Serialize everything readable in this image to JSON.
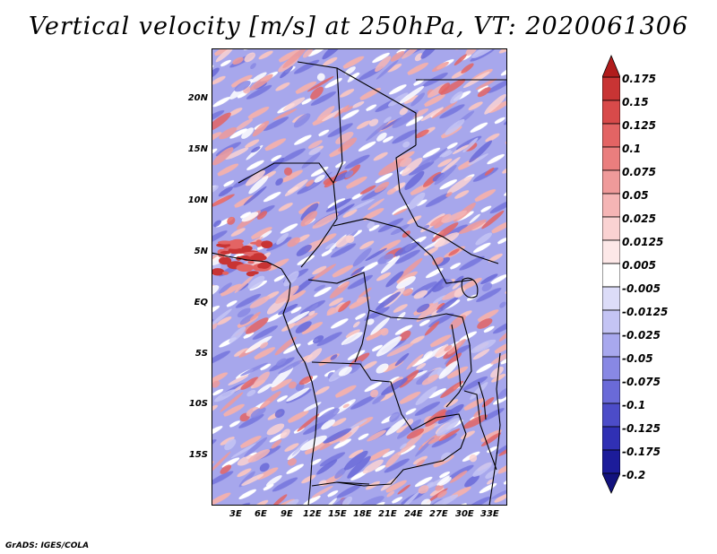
{
  "title": "Vertical velocity [m/s] at 250hPa, VT: 2020061306",
  "credit": "GrADS: IGES/COLA",
  "map": {
    "lat_labels": [
      "20N",
      "15N",
      "10N",
      "5N",
      "EQ",
      "5S",
      "10S",
      "15S"
    ],
    "lon_labels": [
      "3E",
      "6E",
      "9E",
      "12E",
      "15E",
      "18E",
      "21E",
      "24E",
      "27E",
      "30E",
      "33E"
    ]
  },
  "colorbar": {
    "labels": [
      "0.175",
      "0.15",
      "0.125",
      "0.1",
      "0.075",
      "0.05",
      "0.025",
      "0.0125",
      "0.005",
      "-0.005",
      "-0.0125",
      "-0.025",
      "-0.05",
      "-0.075",
      "-0.1",
      "-0.125",
      "-0.175",
      "-0.2"
    ],
    "colors": [
      "#b01c1c",
      "#c83434",
      "#d84a4a",
      "#e36464",
      "#ea7e7e",
      "#ef9a9a",
      "#f5b5b5",
      "#fad2d2",
      "#fde8e8",
      "#ffffff",
      "#dcdcf8",
      "#c4c4f4",
      "#a8a8ee",
      "#8888e4",
      "#6a6ad8",
      "#4c4cc8",
      "#3030b4",
      "#1c1c9a",
      "#12127e"
    ]
  }
}
